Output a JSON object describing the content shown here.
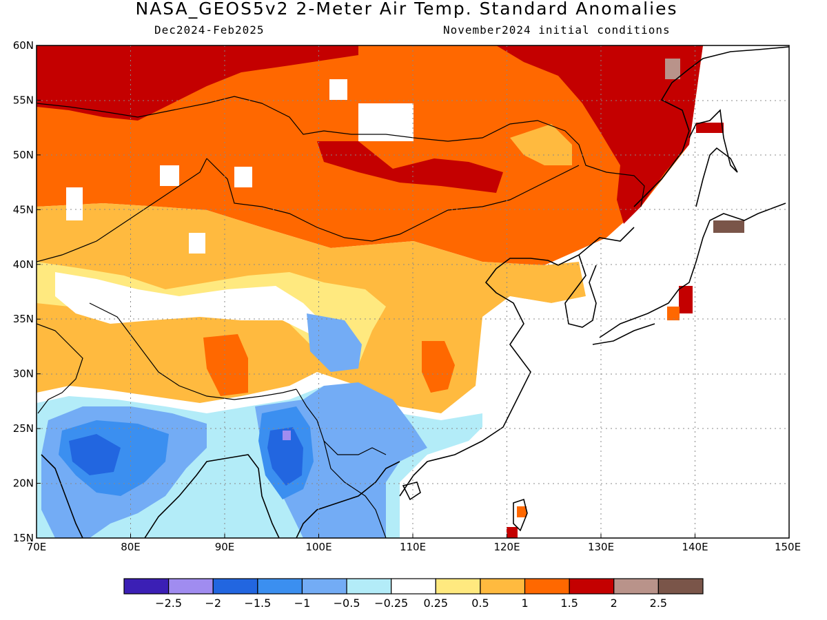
{
  "header": {
    "title": "NASA_GEOS5v2 2-Meter Air Temp. Standard Anomalies",
    "period": "Dec2024-Feb2025",
    "init": "November2024 initial conditions"
  },
  "map": {
    "lon_range": [
      70,
      150
    ],
    "lat_range": [
      15,
      60
    ],
    "lon_ticks": [
      "70E",
      "80E",
      "90E",
      "100E",
      "110E",
      "120E",
      "130E",
      "140E",
      "150E"
    ],
    "lat_ticks": [
      "15N",
      "20N",
      "25N",
      "30N",
      "35N",
      "40N",
      "45N",
      "50N",
      "55N",
      "60N"
    ],
    "gridlines": true,
    "land_mask_color": "#ffffff",
    "coastline_color": "#000000"
  },
  "colorbar": {
    "colors": [
      "#3b1fb5",
      "#a08cf0",
      "#2266e0",
      "#3b8ff0",
      "#73acf5",
      "#b3ecf8",
      "#ffffff",
      "#ffe97f",
      "#ffba3f",
      "#ff6800",
      "#c40000",
      "#b9938a",
      "#7a5549"
    ],
    "labels": [
      "-2.5",
      "-2",
      "-1.5",
      "-1",
      "-0.5",
      "-0.25",
      "0.25",
      "0.5",
      "1",
      "1.5",
      "2",
      "2.5"
    ]
  }
}
